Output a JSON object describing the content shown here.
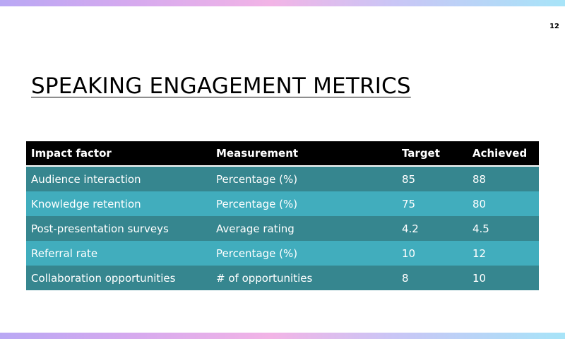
{
  "slide": {
    "page_number": "12",
    "title": "SPEAKING ENGAGEMENT METRICS"
  },
  "colors": {
    "header_row": "#000000",
    "row_dark": "#36868f",
    "row_light": "#41adbd",
    "text_light": "#ffffff",
    "title_text": "#000000"
  },
  "table": {
    "headers": [
      "Impact factor",
      "Measurement",
      "Target",
      "Achieved"
    ],
    "rows": [
      [
        "Audience interaction",
        "Percentage (%)",
        "85",
        "88"
      ],
      [
        "Knowledge retention",
        "Percentage (%)",
        "75",
        "80"
      ],
      [
        "Post-presentation surveys",
        "Average rating",
        "4.2",
        "4.5"
      ],
      [
        "Referral rate",
        "Percentage (%)",
        "10",
        "12"
      ],
      [
        "Collaboration opportunities",
        "# of opportunities",
        "8",
        "10"
      ]
    ]
  }
}
